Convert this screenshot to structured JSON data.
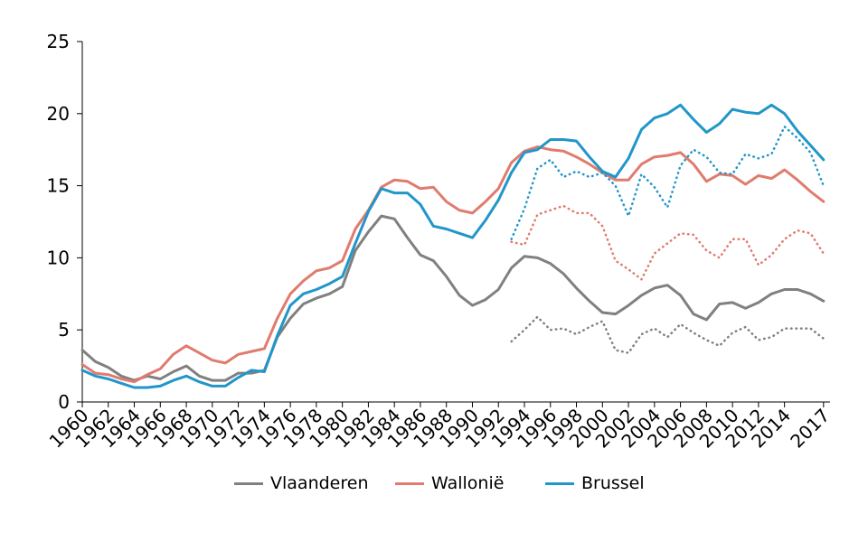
{
  "chart_data": {
    "type": "line",
    "title": "",
    "xlabel": "",
    "ylabel": "",
    "ylim": [
      0,
      25
    ],
    "yticks": [
      "0",
      "5",
      "10",
      "15",
      "20",
      "25"
    ],
    "xtick_labels": [
      "1960",
      "1962",
      "1964",
      "1966",
      "1968",
      "1970",
      "1972",
      "1974",
      "1976",
      "1978",
      "1980",
      "1982",
      "1984",
      "1986",
      "1988",
      "1990",
      "1992",
      "1994",
      "1996",
      "1998",
      "2000",
      "2002",
      "2004",
      "2006",
      "2008",
      "2010",
      "2012",
      "2014",
      "2017"
    ],
    "xlim": [
      1960,
      2017.5
    ],
    "grid": false,
    "legend_position": "bottom",
    "colors": {
      "Vlaanderen": "#808080",
      "Wallonie": "#e07b6e",
      "Brussel": "#2196c9"
    },
    "series": [
      {
        "name": "Vlaanderen",
        "style": "solid",
        "x": [
          1960,
          1961,
          1962,
          1963,
          1964,
          1965,
          1966,
          1967,
          1968,
          1969,
          1970,
          1971,
          1972,
          1973,
          1974,
          1975,
          1976,
          1977,
          1978,
          1979,
          1980,
          1981,
          1982,
          1983,
          1984,
          1985,
          1986,
          1987,
          1988,
          1989,
          1990,
          1991,
          1992,
          1993,
          1994,
          1995,
          1996,
          1997,
          1998,
          1999,
          2000,
          2001,
          2002,
          2003,
          2004,
          2005,
          2006,
          2007,
          2008,
          2009,
          2010,
          2011,
          2012,
          2013,
          2014,
          2015,
          2016,
          2017
        ],
        "values": [
          3.6,
          2.8,
          2.4,
          1.8,
          1.5,
          1.8,
          1.6,
          2.1,
          2.5,
          1.8,
          1.5,
          1.5,
          2.0,
          2.0,
          2.2,
          4.5,
          5.8,
          6.8,
          7.2,
          7.5,
          8.0,
          10.5,
          11.8,
          12.9,
          12.7,
          11.4,
          10.2,
          9.8,
          8.7,
          7.4,
          6.7,
          7.1,
          7.8,
          9.3,
          10.1,
          10.0,
          9.6,
          8.9,
          7.9,
          7.0,
          6.2,
          6.1,
          6.7,
          7.4,
          7.9,
          8.1,
          7.4,
          6.1,
          5.7,
          6.8,
          6.9,
          6.5,
          6.9,
          7.5,
          7.8,
          7.8,
          7.5,
          7.0
        ]
      },
      {
        "name": "Vlaanderen (dotted)",
        "style": "dotted",
        "x": [
          1993,
          1994,
          1995,
          1996,
          1997,
          1998,
          1999,
          2000,
          2001,
          2002,
          2003,
          2004,
          2005,
          2006,
          2007,
          2008,
          2009,
          2010,
          2011,
          2012,
          2013,
          2014,
          2015,
          2016,
          2017
        ],
        "values": [
          4.2,
          5.0,
          5.9,
          5.0,
          5.1,
          4.7,
          5.2,
          5.6,
          3.6,
          3.4,
          4.7,
          5.1,
          4.5,
          5.4,
          4.8,
          4.3,
          3.9,
          4.8,
          5.2,
          4.3,
          4.5,
          5.1,
          5.1,
          5.1,
          4.4
        ]
      },
      {
        "name": "Wallonie",
        "style": "solid",
        "x": [
          1960,
          1961,
          1962,
          1963,
          1964,
          1965,
          1966,
          1967,
          1968,
          1969,
          1970,
          1971,
          1972,
          1973,
          1974,
          1975,
          1976,
          1977,
          1978,
          1979,
          1980,
          1981,
          1982,
          1983,
          1984,
          1985,
          1986,
          1987,
          1988,
          1989,
          1990,
          1991,
          1992,
          1993,
          1994,
          1995,
          1996,
          1997,
          1998,
          1999,
          2000,
          2001,
          2002,
          2003,
          2004,
          2005,
          2006,
          2007,
          2008,
          2009,
          2010,
          2011,
          2012,
          2013,
          2014,
          2015,
          2016,
          2017
        ],
        "values": [
          2.6,
          2.0,
          1.9,
          1.6,
          1.4,
          1.9,
          2.3,
          3.3,
          3.9,
          3.4,
          2.9,
          2.7,
          3.3,
          3.5,
          3.7,
          5.8,
          7.5,
          8.4,
          9.1,
          9.3,
          9.8,
          12.0,
          13.3,
          14.9,
          15.4,
          15.3,
          14.8,
          14.9,
          13.9,
          13.3,
          13.1,
          13.9,
          14.8,
          16.6,
          17.4,
          17.7,
          17.5,
          17.4,
          17.0,
          16.5,
          15.9,
          15.4,
          15.4,
          16.5,
          17.0,
          17.1,
          17.3,
          16.5,
          15.3,
          15.8,
          15.7,
          15.1,
          15.7,
          15.5,
          16.1,
          15.4,
          14.6,
          13.9
        ]
      },
      {
        "name": "Wallonie (dotted)",
        "style": "dotted",
        "x": [
          1993,
          1994,
          1995,
          1996,
          1997,
          1998,
          1999,
          2000,
          2001,
          2002,
          2003,
          2004,
          2005,
          2006,
          2007,
          2008,
          2009,
          2010,
          2011,
          2012,
          2013,
          2014,
          2015,
          2016,
          2017
        ],
        "values": [
          11.1,
          10.9,
          13.0,
          13.3,
          13.6,
          13.1,
          13.1,
          12.2,
          9.8,
          9.2,
          8.5,
          10.3,
          11.0,
          11.7,
          11.6,
          10.5,
          10.0,
          11.3,
          11.3,
          9.5,
          10.2,
          11.3,
          11.9,
          11.7,
          10.3
        ]
      },
      {
        "name": "Brussel",
        "style": "solid",
        "x": [
          1960,
          1961,
          1962,
          1963,
          1964,
          1965,
          1966,
          1967,
          1968,
          1969,
          1970,
          1971,
          1972,
          1973,
          1974,
          1975,
          1976,
          1977,
          1978,
          1979,
          1980,
          1981,
          1982,
          1983,
          1984,
          1985,
          1986,
          1987,
          1988,
          1989,
          1990,
          1991,
          1992,
          1993,
          1994,
          1995,
          1996,
          1997,
          1998,
          1999,
          2000,
          2001,
          2002,
          2003,
          2004,
          2005,
          2006,
          2007,
          2008,
          2009,
          2010,
          2011,
          2012,
          2013,
          2014,
          2015,
          2016,
          2017
        ],
        "values": [
          2.2,
          1.8,
          1.6,
          1.3,
          1.0,
          1.0,
          1.1,
          1.5,
          1.8,
          1.4,
          1.1,
          1.1,
          1.7,
          2.2,
          2.1,
          4.6,
          6.7,
          7.5,
          7.8,
          8.2,
          8.7,
          11.0,
          13.2,
          14.8,
          14.5,
          14.5,
          13.7,
          12.2,
          12.0,
          11.7,
          11.4,
          12.6,
          14.0,
          15.9,
          17.3,
          17.5,
          18.2,
          18.2,
          18.1,
          17.0,
          16.0,
          15.6,
          16.9,
          18.9,
          19.7,
          20.0,
          20.6,
          19.6,
          18.7,
          19.3,
          20.3,
          20.1,
          20.0,
          20.6,
          20.0,
          18.8,
          17.8,
          16.8
        ]
      },
      {
        "name": "Brussel (dotted)",
        "style": "dotted",
        "x": [
          1993,
          1994,
          1995,
          1996,
          1997,
          1998,
          1999,
          2000,
          2001,
          2002,
          2003,
          2004,
          2005,
          2006,
          2007,
          2008,
          2009,
          2010,
          2011,
          2012,
          2013,
          2014,
          2015,
          2016,
          2017
        ],
        "values": [
          11.3,
          13.4,
          16.2,
          16.8,
          15.6,
          16.0,
          15.6,
          15.9,
          15.0,
          12.9,
          15.8,
          14.9,
          13.5,
          16.4,
          17.5,
          17.0,
          15.9,
          15.8,
          17.2,
          16.9,
          17.2,
          19.1,
          18.3,
          17.3,
          15.0
        ]
      }
    ],
    "legend": [
      "Vlaanderen",
      "Wallonië",
      "Brussel"
    ]
  }
}
